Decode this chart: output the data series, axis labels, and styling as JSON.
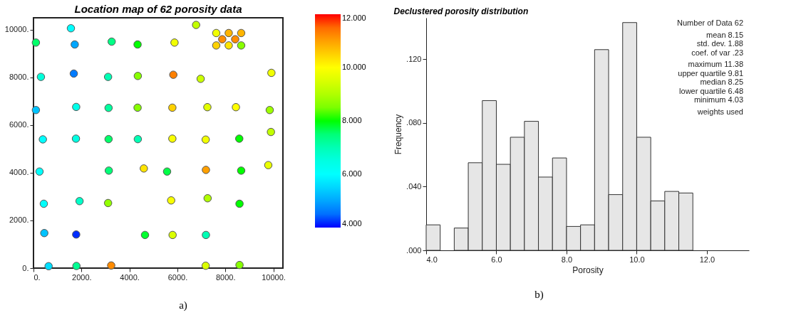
{
  "chart_data": [
    {
      "type": "scatter",
      "title": "Location map of 62 porosity data",
      "x": [
        1560,
        6780,
        7620,
        8140,
        8660,
        7870,
        8410,
        7620,
        8140,
        8660,
        100,
        1720,
        3260,
        4340,
        5880,
        310,
        1680,
        3110,
        4350,
        5830,
        6970,
        9920,
        100,
        1780,
        3130,
        4340,
        5790,
        7250,
        8440,
        9850,
        390,
        1770,
        3130,
        4350,
        5790,
        7180,
        8580,
        9900,
        250,
        3140,
        4600,
        5570,
        7190,
        8660,
        9790,
        430,
        1920,
        3110,
        5740,
        7260,
        8590,
        450,
        1780,
        4650,
        5800,
        7190,
        630,
        1790,
        3240,
        7180,
        8590
      ],
      "values": [
        10060,
        10200,
        9860,
        9860,
        9860,
        9600,
        9600,
        9340,
        9340,
        9340,
        9460,
        9380,
        9500,
        9380,
        9460,
        8020,
        8160,
        8020,
        8060,
        8110,
        7940,
        8190,
        6630,
        6760,
        6720,
        6730,
        6730,
        6750,
        6750,
        6630,
        5400,
        5430,
        5410,
        5410,
        5430,
        5390,
        5430,
        5710,
        4050,
        4090,
        4180,
        4050,
        4120,
        4090,
        4320,
        2700,
        2810,
        2730,
        2840,
        2930,
        2700,
        1470,
        1410,
        1390,
        1390,
        1390,
        80,
        90,
        110,
        100,
        130
      ],
      "cvalues": [
        6.0,
        9.2,
        9.8,
        10.8,
        10.8,
        11.2,
        11.2,
        10.5,
        10.3,
        8.6,
        7.6,
        5.0,
        7.4,
        8.0,
        9.8,
        6.6,
        4.6,
        7.0,
        8.6,
        11.3,
        9.3,
        9.8,
        5.3,
        6.4,
        7.2,
        8.6,
        10.5,
        9.6,
        10.0,
        8.8,
        6.0,
        6.5,
        7.6,
        7.0,
        9.9,
        9.8,
        8.0,
        9.2,
        6.1,
        7.5,
        10.3,
        7.8,
        11.0,
        8.0,
        9.7,
        6.1,
        6.8,
        8.7,
        9.9,
        9.0,
        8.0,
        5.3,
        4.1,
        7.9,
        9.5,
        7.0,
        5.6,
        7.3,
        11.2,
        9.5,
        8.6
      ],
      "xlim": [
        0,
        10400
      ],
      "ylim": [
        0,
        10500
      ],
      "xticks": [
        {
          "value": 0,
          "label": "0."
        },
        {
          "value": 2000,
          "label": "2000."
        },
        {
          "value": 4000,
          "label": "4000."
        },
        {
          "value": 6000,
          "label": "6000."
        },
        {
          "value": 8000,
          "label": "8000."
        },
        {
          "value": 10000,
          "label": "10000."
        }
      ],
      "yticks": [
        {
          "value": 0,
          "label": "0."
        },
        {
          "value": 2000,
          "label": "2000."
        },
        {
          "value": 4000,
          "label": "4000."
        },
        {
          "value": 6000,
          "label": "6000."
        },
        {
          "value": 8000,
          "label": "8000."
        },
        {
          "value": 10000,
          "label": "10000."
        }
      ],
      "clim": [
        4,
        12
      ],
      "cticks": [
        {
          "value": 4,
          "label": "4.000"
        },
        {
          "value": 6,
          "label": "6.000"
        },
        {
          "value": 8,
          "label": "8.000"
        },
        {
          "value": 10,
          "label": "10.000"
        },
        {
          "value": 12,
          "label": "12.000"
        }
      ],
      "marker": "circle",
      "grid": false,
      "annotations": [
        "a)"
      ]
    },
    {
      "type": "histogram",
      "title": "Declustered porosity distribution",
      "xlabel": "Porosity",
      "ylabel": "Frequency",
      "bins": [
        4.0,
        4.4,
        4.8,
        5.2,
        5.6,
        6.0,
        6.4,
        6.8,
        7.2,
        7.6,
        8.0,
        8.4,
        8.8,
        9.2,
        9.6,
        10.0,
        10.4,
        10.8,
        11.2,
        11.6
      ],
      "values": [
        0.016,
        null,
        0.014,
        0.055,
        0.094,
        0.054,
        0.071,
        0.081,
        0.046,
        0.058,
        0.015,
        0.016,
        0.126,
        0.035,
        0.143,
        0.071,
        0.031,
        0.037,
        0.036
      ],
      "color": "#e6e6e6",
      "xlim": [
        4,
        13.2
      ],
      "ylim": [
        0,
        0.146
      ],
      "xticks": [
        {
          "value": 4,
          "label": "4.0"
        },
        {
          "value": 6,
          "label": "6.0"
        },
        {
          "value": 8,
          "label": "8.0"
        },
        {
          "value": 10,
          "label": "10.0"
        },
        {
          "value": 12,
          "label": "12.0"
        }
      ],
      "yticks": [
        {
          "value": 0,
          "label": ".000"
        },
        {
          "value": 0.04,
          "label": ".040"
        },
        {
          "value": 0.08,
          "label": ".080"
        },
        {
          "value": 0.12,
          "label": ".120"
        }
      ],
      "grid": false,
      "annotations": [
        "Number of Data  62",
        "mean  8.15",
        "std. dev.  1.88",
        "coef. of var  .23",
        "maximum  11.38",
        "upper quartile  9.81",
        "median  8.25",
        "lower quartile  6.48",
        "minimum  4.03",
        "weights used",
        "b)"
      ]
    }
  ]
}
